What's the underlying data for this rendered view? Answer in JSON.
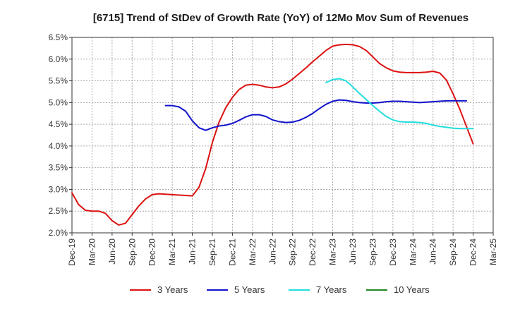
{
  "chart_data": {
    "type": "line",
    "title": "[6715]  Trend of StDev of Growth Rate (YoY) of 12Mo Mov Sum of Revenues",
    "xlabel": "",
    "ylabel": "",
    "ylim": [
      2.0,
      6.5
    ],
    "y_ticks": [
      "2.0%",
      "2.5%",
      "3.0%",
      "3.5%",
      "4.0%",
      "4.5%",
      "5.0%",
      "5.5%",
      "6.0%",
      "6.5%"
    ],
    "x_ticks": [
      "Dec-19",
      "Mar-20",
      "Jun-20",
      "Sep-20",
      "Dec-20",
      "Mar-21",
      "Jun-21",
      "Sep-21",
      "Dec-21",
      "Mar-22",
      "Jun-22",
      "Sep-22",
      "Dec-22",
      "Mar-23",
      "Jun-23",
      "Sep-23",
      "Dec-23",
      "Mar-24",
      "Jun-24",
      "Sep-24",
      "Dec-24",
      "Mar-25"
    ],
    "grid": true,
    "legend_position": "bottom",
    "series": [
      {
        "name": "3 Years",
        "color": "#dd1111",
        "start_index": 0,
        "values": [
          2.92,
          2.65,
          2.52,
          2.5,
          2.5,
          2.45,
          2.28,
          2.18,
          2.22,
          2.42,
          2.62,
          2.78,
          2.88,
          2.9,
          2.89,
          2.88,
          2.87,
          2.86,
          2.85,
          3.05,
          3.48,
          4.08,
          4.55,
          4.88,
          5.12,
          5.3,
          5.4,
          5.42,
          5.4,
          5.36,
          5.34,
          5.36,
          5.43,
          5.54,
          5.67,
          5.8,
          5.94,
          6.07,
          6.2,
          6.3,
          6.33,
          6.34,
          6.33,
          6.29,
          6.2,
          6.05,
          5.9,
          5.8,
          5.73,
          5.7,
          5.69,
          5.69,
          5.69,
          5.7,
          5.72,
          5.68,
          5.52,
          5.2,
          4.85,
          4.45,
          4.05
        ]
      },
      {
        "name": "5 Years",
        "color": "#1111cc",
        "start_index": 14,
        "values": [
          4.93,
          4.93,
          4.9,
          4.8,
          4.58,
          4.42,
          4.36,
          4.42,
          4.46,
          4.48,
          4.52,
          4.59,
          4.67,
          4.72,
          4.72,
          4.68,
          4.6,
          4.56,
          4.54,
          4.55,
          4.59,
          4.66,
          4.75,
          4.86,
          4.96,
          5.03,
          5.06,
          5.05,
          5.02,
          5.0,
          4.99,
          4.99,
          5.0,
          5.02,
          5.03,
          5.03,
          5.02,
          5.01,
          5.0,
          5.01,
          5.02,
          5.03,
          5.04,
          5.04,
          5.04,
          5.04
        ]
      },
      {
        "name": "7 Years",
        "color": "#22dddd",
        "start_index": 38,
        "values": [
          5.46,
          5.53,
          5.55,
          5.5,
          5.36,
          5.21,
          5.07,
          4.93,
          4.8,
          4.68,
          4.6,
          4.56,
          4.55,
          4.55,
          4.54,
          4.52,
          4.48,
          4.45,
          4.43,
          4.41,
          4.4,
          4.4,
          4.4
        ]
      },
      {
        "name": "10 Years",
        "color": "#228822",
        "start_index": 0,
        "values": []
      }
    ]
  }
}
